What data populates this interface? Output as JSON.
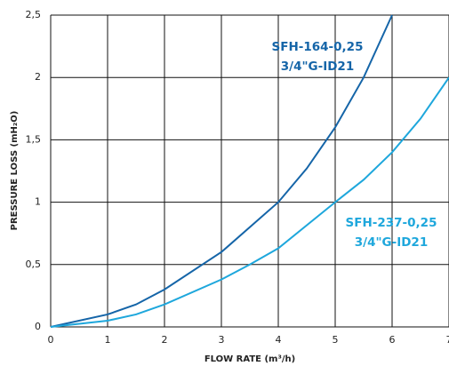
{
  "chart_data": {
    "type": "line",
    "x_label": "FLOW RATE (m³/h)",
    "y_label": "PRESSURE LOSS (mH₂O)",
    "xlim": [
      0,
      7
    ],
    "xticks": [
      0,
      1,
      2,
      3,
      4,
      5,
      6,
      7
    ],
    "ylim": [
      0,
      2.5
    ],
    "yticks": [
      0,
      {
        "value": 0.5,
        "label": "0,5"
      },
      1,
      {
        "value": 1.5,
        "label": "1,5"
      },
      2,
      {
        "value": 2.5,
        "label": "2,5"
      }
    ],
    "grid": true,
    "series": [
      {
        "name": "SFH-164-0,25 3/4\"G-ID21",
        "color": "#1565a8",
        "x": [
          0,
          1,
          1.5,
          2,
          3,
          4,
          4.5,
          5,
          5.5,
          6
        ],
        "values": [
          0,
          0.1,
          0.18,
          0.3,
          0.6,
          1.0,
          1.27,
          1.6,
          2.0,
          2.5
        ]
      },
      {
        "name": "SFH-237-0,25 3/4\"G-ID21",
        "color": "#1ea7dc",
        "x": [
          0,
          1,
          1.5,
          2,
          3,
          3.5,
          4,
          5,
          5.5,
          6,
          6.5,
          7
        ],
        "values": [
          0,
          0.05,
          0.1,
          0.18,
          0.38,
          0.5,
          0.63,
          1.0,
          1.18,
          1.4,
          1.67,
          2.0
        ]
      }
    ]
  }
}
